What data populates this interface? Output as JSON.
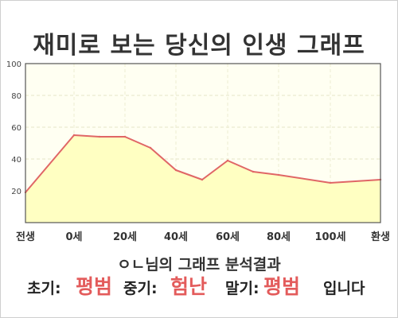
{
  "title": "재미로 보는 당신의 인생 그래프",
  "summary": {
    "name": "ㅇㄴ",
    "suffix": "님의 그래프 분석결과"
  },
  "result": {
    "early_label": "초기:",
    "early_value": "평범",
    "middle_label": "중기:",
    "middle_value": "험난",
    "late_label": "말기:",
    "late_value": "평범",
    "ending": "입니다"
  },
  "colors": {
    "line": "#e06666",
    "fill": "#ffffc2",
    "plot_bg": "#fffff2",
    "highlight": "#e35b5b"
  },
  "chart_data": {
    "type": "area",
    "title": "재미로 보는 당신의 인생 그래프",
    "xlabel": "",
    "ylabel": "",
    "x_tick_labels": [
      "전생",
      "0세",
      "20세",
      "40세",
      "60세",
      "80세",
      "100세",
      "환생"
    ],
    "y_ticks": [
      20,
      40,
      60,
      80,
      100
    ],
    "ylim": [
      0,
      100
    ],
    "grid": true,
    "legend": "none",
    "points": [
      {
        "x": "전생",
        "y": 19
      },
      {
        "x": "0세",
        "y": 55
      },
      {
        "x": "10세",
        "y": 54
      },
      {
        "x": "20세",
        "y": 54
      },
      {
        "x": "30세",
        "y": 47
      },
      {
        "x": "40세",
        "y": 33
      },
      {
        "x": "50세",
        "y": 27
      },
      {
        "x": "60세",
        "y": 39
      },
      {
        "x": "70세",
        "y": 32
      },
      {
        "x": "80세",
        "y": 30
      },
      {
        "x": "100세",
        "y": 25
      },
      {
        "x": "환생",
        "y": 27
      }
    ]
  }
}
